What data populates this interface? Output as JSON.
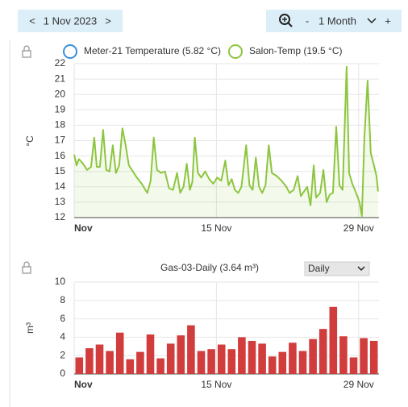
{
  "toolbar": {
    "prev": "<",
    "date": "1 Nov 2023",
    "next": ">",
    "zoom_out": "-",
    "period": "1 Month",
    "zoom_in": "+"
  },
  "chart_data": [
    {
      "type": "line",
      "ylabel": "°C",
      "x": [
        0,
        0.24,
        0.47,
        0.87,
        1.27,
        1.66,
        1.98,
        2.22,
        2.53,
        2.85,
        3.16,
        3.48,
        3.8,
        4.11,
        4.43,
        4.75,
        5.06,
        5.38,
        5.78,
        6.17,
        6.65,
        7.2,
        7.52,
        7.83,
        8.15,
        8.54,
        8.94,
        9.34,
        9.73,
        10.13,
        10.44,
        10.76,
        11.08,
        11.39,
        11.63,
        11.87,
        12.18,
        12.5,
        12.9,
        13.29,
        13.69,
        14.08,
        14.48,
        14.87,
        15.19,
        15.51,
        15.82,
        16.14,
        16.46,
        16.93,
        17.25,
        17.56,
        17.88,
        18.2,
        18.51,
        18.83,
        19.15,
        19.46,
        19.94,
        20.41,
        20.89,
        21.2,
        21.6,
        21.99,
        22.31,
        22.63,
        22.94,
        23.26,
        23.58,
        23.81,
        24.21,
        24.53,
        24.84,
        25.16,
        25.47,
        25.79,
        26.11,
        26.42,
        26.82,
        27.06,
        27.37,
        27.69,
        28.09,
        28.32,
        28.56,
        28.88,
        29.19,
        29.51,
        29.75,
        29.91
      ],
      "series": [
        {
          "name": "Meter-21 Temperature (5.82 °C)",
          "color": "#3a8fd9",
          "visible": false
        },
        {
          "name": "Salon-Temp (19.5 °C)",
          "color": "#8cc63f",
          "visible": true,
          "values": [
            16.1,
            15.4,
            15.8,
            15.5,
            15.1,
            15.3,
            17.2,
            15.3,
            15.3,
            17.7,
            15.1,
            15.0,
            16.7,
            14.9,
            15.4,
            17.8,
            16.7,
            15.4,
            15.0,
            14.6,
            14.2,
            13.6,
            14.4,
            17.2,
            15.1,
            14.9,
            15.0,
            13.9,
            13.8,
            14.9,
            13.6,
            14.0,
            15.5,
            13.8,
            14.3,
            17.2,
            14.9,
            14.6,
            15.0,
            14.5,
            14.2,
            14.6,
            14.4,
            15.7,
            14.1,
            14.5,
            13.8,
            13.6,
            14.0,
            16.7,
            14.1,
            13.8,
            15.9,
            14.0,
            13.6,
            14.1,
            16.7,
            14.9,
            14.7,
            14.4,
            14.0,
            13.6,
            13.8,
            14.7,
            13.4,
            13.7,
            14.0,
            12.8,
            15.4,
            13.3,
            13.6,
            15.1,
            13.0,
            13.5,
            13.6,
            17.9,
            14.1,
            13.8,
            21.8,
            14.9,
            14.2,
            13.7,
            13.0,
            12.1,
            17.2,
            20.9,
            16.2,
            15.4,
            14.7,
            13.7
          ]
        }
      ],
      "xlim": [
        0,
        30
      ],
      "xticks": [
        {
          "value": 0,
          "label": "Nov"
        },
        {
          "value": 14,
          "label": "15 Nov"
        },
        {
          "value": 28,
          "label": "29 Nov"
        }
      ],
      "ylim": [
        12,
        22
      ],
      "yticks": [
        12,
        13,
        14,
        15,
        16,
        17,
        18,
        19,
        20,
        21,
        22
      ],
      "grid": true
    },
    {
      "type": "bar",
      "title": "Gas-03-Daily (3.64 m³)",
      "ylabel": "m³",
      "period_select": "Daily",
      "color": "#d13c3c",
      "x": [
        0,
        1,
        2,
        3,
        4,
        5,
        6,
        7,
        8,
        9,
        10,
        11,
        12,
        13,
        14,
        15,
        16,
        17,
        18,
        19,
        20,
        21,
        22,
        23,
        24,
        25,
        26,
        27,
        28,
        29
      ],
      "values": [
        1.8,
        2.8,
        3.2,
        2.5,
        4.5,
        1.6,
        2.4,
        4.3,
        1.7,
        3.3,
        4.2,
        5.3,
        2.5,
        2.7,
        3.2,
        2.7,
        4.0,
        3.6,
        3.3,
        1.9,
        2.4,
        3.4,
        2.5,
        3.8,
        4.9,
        7.3,
        4.1,
        1.8,
        3.9,
        3.6
      ],
      "xlim": [
        0,
        30
      ],
      "xticks": [
        {
          "value": 0,
          "label": "Nov"
        },
        {
          "value": 14,
          "label": "15 Nov"
        },
        {
          "value": 28,
          "label": "29 Nov"
        }
      ],
      "ylim": [
        0,
        10
      ],
      "yticks": [
        0,
        2,
        4,
        6,
        8,
        10
      ],
      "grid": true
    }
  ]
}
